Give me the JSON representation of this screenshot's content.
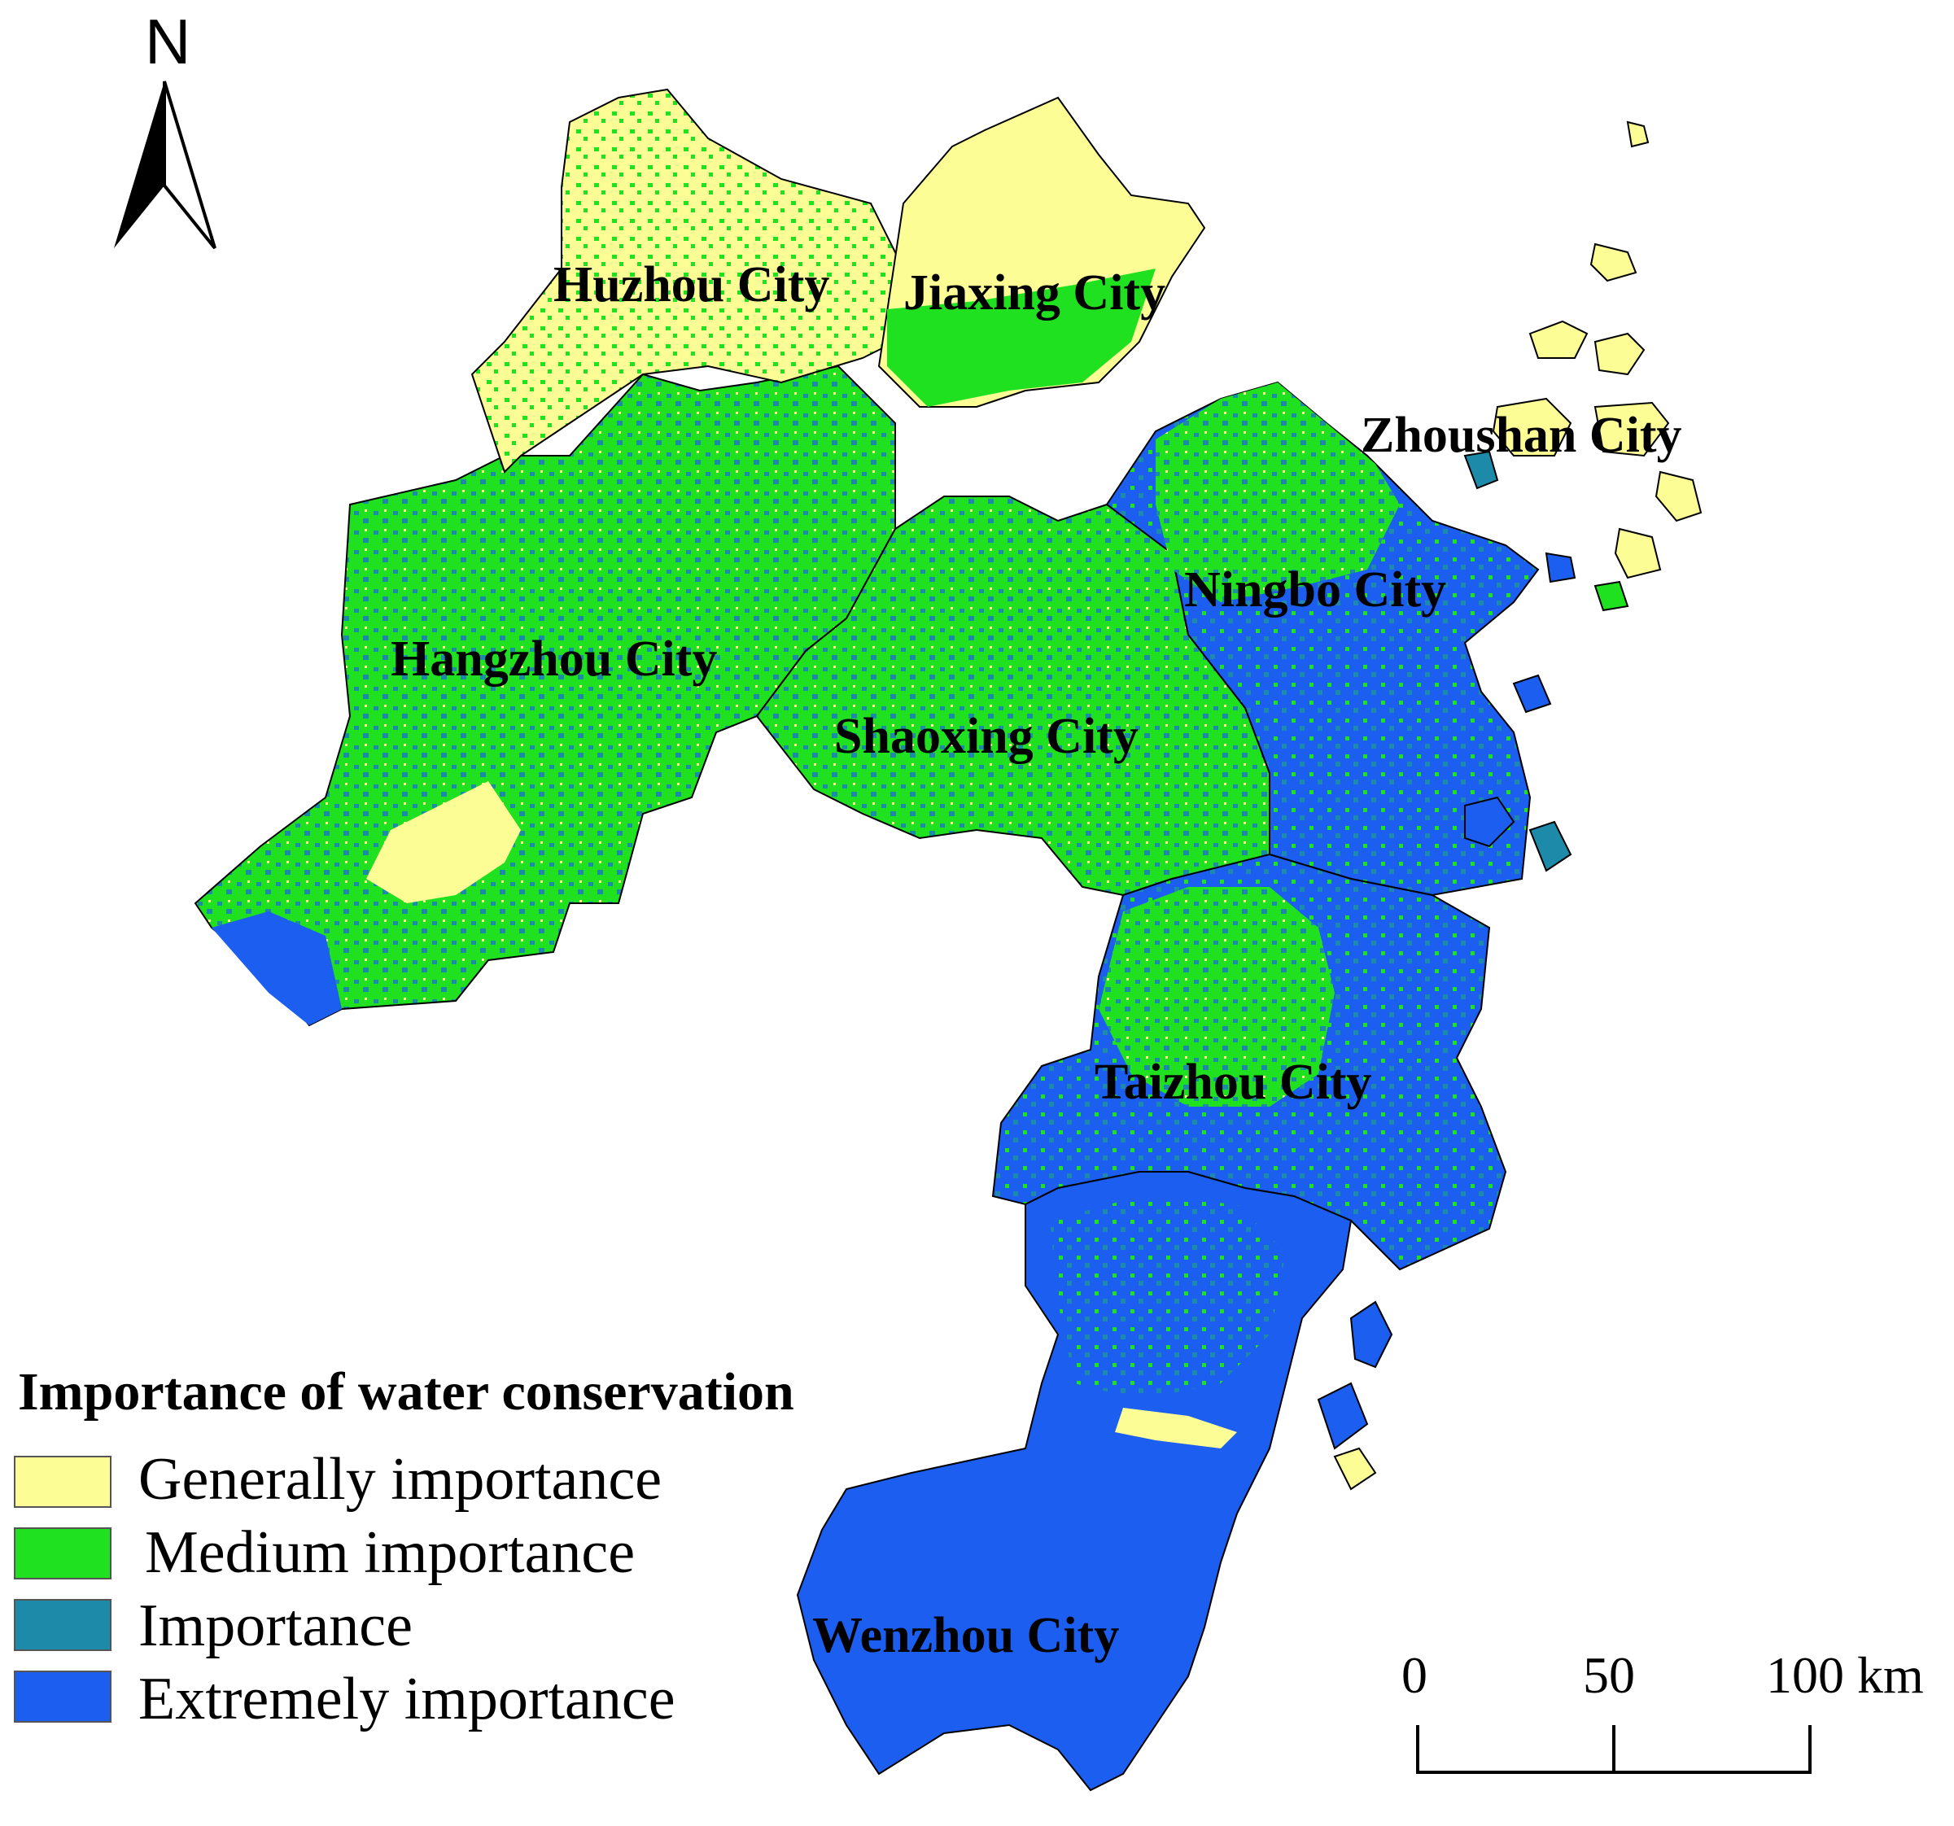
{
  "north_arrow": {
    "label": "N"
  },
  "cities": [
    {
      "id": "huzhou",
      "label": "Huzhou City"
    },
    {
      "id": "jiaxing",
      "label": "Jiaxing City"
    },
    {
      "id": "zhoushan",
      "label": "Zhoushan City"
    },
    {
      "id": "ningbo",
      "label": "Ningbo City"
    },
    {
      "id": "hangzhou",
      "label": "Hangzhou City"
    },
    {
      "id": "shaoxing",
      "label": "Shaoxing City"
    },
    {
      "id": "taizhou",
      "label": "Taizhou City"
    },
    {
      "id": "wenzhou",
      "label": "Wenzhou City"
    }
  ],
  "legend": {
    "title": "Importance of water conservation",
    "items": [
      {
        "label": "Generally importance",
        "color": "#fdfd96"
      },
      {
        "label": "Medium importance",
        "color": "#1fe11f"
      },
      {
        "label": "Importance",
        "color": "#1c8aa8"
      },
      {
        "label": "Extremely importance",
        "color": "#1b5ef0"
      }
    ]
  },
  "scale_bar": {
    "labels": [
      "0",
      "50",
      "100 km"
    ]
  }
}
